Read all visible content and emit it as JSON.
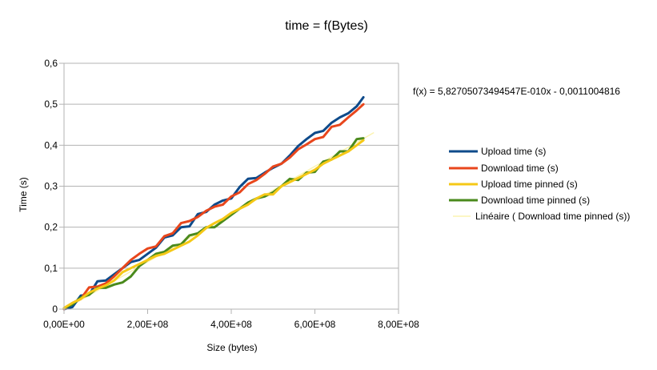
{
  "chart_data": {
    "type": "line",
    "title": "time = f(Bytes)",
    "xlabel": "Size (bytes)",
    "ylabel": "Time (s)",
    "xlim": [
      0,
      800000000
    ],
    "ylim": [
      0,
      0.6
    ],
    "xticks": [
      0,
      200000000,
      400000000,
      600000000,
      800000000
    ],
    "xtick_labels": [
      "0,00E+00",
      "2,00E+08",
      "4,00E+08",
      "6,00E+08",
      "8,00E+08"
    ],
    "yticks": [
      0,
      0.1,
      0.2,
      0.3,
      0.4,
      0.5,
      0.6
    ],
    "ytick_labels": [
      "0",
      "0,1",
      "0,2",
      "0,3",
      "0,4",
      "0,5",
      "0,6"
    ],
    "grid": "horizontal",
    "legend_position": "right",
    "annotation": "f(x) = 5,82705073494547E-010x - 0,0011004816",
    "series": [
      {
        "name": "Upload time (s)",
        "color": "#0e4a8a",
        "x": [
          0,
          20000000,
          40000000,
          60000000,
          80000000,
          100000000,
          120000000,
          140000000,
          160000000,
          180000000,
          200000000,
          220000000,
          240000000,
          260000000,
          280000000,
          300000000,
          320000000,
          340000000,
          360000000,
          380000000,
          400000000,
          420000000,
          440000000,
          460000000,
          480000000,
          500000000,
          520000000,
          540000000,
          560000000,
          580000000,
          600000000,
          620000000,
          640000000,
          660000000,
          680000000,
          700000000,
          716000000
        ],
        "y": [
          0,
          0.005,
          0.033,
          0.035,
          0.068,
          0.07,
          0.085,
          0.1,
          0.115,
          0.12,
          0.135,
          0.15,
          0.175,
          0.18,
          0.2,
          0.202,
          0.232,
          0.237,
          0.255,
          0.265,
          0.27,
          0.298,
          0.318,
          0.32,
          0.333,
          0.345,
          0.355,
          0.375,
          0.398,
          0.415,
          0.43,
          0.435,
          0.455,
          0.468,
          0.478,
          0.495,
          0.517
        ]
      },
      {
        "name": "Download time (s)",
        "color": "#e8461c",
        "x": [
          0,
          20000000,
          40000000,
          60000000,
          80000000,
          100000000,
          120000000,
          140000000,
          160000000,
          180000000,
          200000000,
          220000000,
          240000000,
          260000000,
          280000000,
          300000000,
          320000000,
          340000000,
          360000000,
          380000000,
          400000000,
          420000000,
          440000000,
          460000000,
          480000000,
          500000000,
          520000000,
          540000000,
          560000000,
          580000000,
          600000000,
          620000000,
          640000000,
          660000000,
          680000000,
          700000000,
          716000000
        ],
        "y": [
          0,
          0.015,
          0.025,
          0.053,
          0.055,
          0.063,
          0.08,
          0.1,
          0.12,
          0.135,
          0.148,
          0.153,
          0.178,
          0.185,
          0.21,
          0.215,
          0.225,
          0.24,
          0.25,
          0.255,
          0.275,
          0.285,
          0.305,
          0.315,
          0.33,
          0.348,
          0.355,
          0.37,
          0.39,
          0.402,
          0.415,
          0.42,
          0.445,
          0.45,
          0.468,
          0.485,
          0.5
        ]
      },
      {
        "name": "Upload time pinned (s)",
        "color": "#f5c816",
        "x": [
          0,
          20000000,
          40000000,
          60000000,
          80000000,
          100000000,
          120000000,
          140000000,
          160000000,
          180000000,
          200000000,
          220000000,
          240000000,
          260000000,
          280000000,
          300000000,
          320000000,
          340000000,
          360000000,
          380000000,
          400000000,
          420000000,
          440000000,
          460000000,
          480000000,
          500000000,
          520000000,
          540000000,
          560000000,
          580000000,
          600000000,
          620000000,
          640000000,
          660000000,
          680000000,
          700000000,
          716000000
        ],
        "y": [
          0.003,
          0.015,
          0.025,
          0.04,
          0.05,
          0.058,
          0.07,
          0.09,
          0.1,
          0.11,
          0.12,
          0.13,
          0.135,
          0.145,
          0.155,
          0.165,
          0.18,
          0.198,
          0.21,
          0.22,
          0.235,
          0.245,
          0.255,
          0.27,
          0.28,
          0.28,
          0.3,
          0.31,
          0.32,
          0.33,
          0.34,
          0.355,
          0.365,
          0.375,
          0.385,
          0.4,
          0.412
        ]
      },
      {
        "name": "Download time pinned (s)",
        "color": "#4a8a1c",
        "x": [
          0,
          20000000,
          40000000,
          60000000,
          80000000,
          100000000,
          120000000,
          140000000,
          160000000,
          180000000,
          200000000,
          220000000,
          240000000,
          260000000,
          280000000,
          300000000,
          320000000,
          340000000,
          360000000,
          380000000,
          400000000,
          420000000,
          440000000,
          460000000,
          480000000,
          500000000,
          520000000,
          540000000,
          560000000,
          580000000,
          600000000,
          620000000,
          640000000,
          660000000,
          680000000,
          700000000,
          716000000
        ],
        "y": [
          0.002,
          0.012,
          0.028,
          0.035,
          0.052,
          0.052,
          0.06,
          0.065,
          0.08,
          0.105,
          0.12,
          0.135,
          0.14,
          0.155,
          0.158,
          0.18,
          0.185,
          0.2,
          0.2,
          0.215,
          0.23,
          0.245,
          0.26,
          0.27,
          0.275,
          0.285,
          0.3,
          0.318,
          0.315,
          0.333,
          0.335,
          0.36,
          0.365,
          0.385,
          0.385,
          0.415,
          0.417
        ]
      },
      {
        "name": "Linéaire ( Download time pinned (s))",
        "color": "#fbf3b0",
        "x": [
          0,
          740000000
        ],
        "y": [
          -0.0011004816,
          0.43009495
        ]
      }
    ]
  }
}
